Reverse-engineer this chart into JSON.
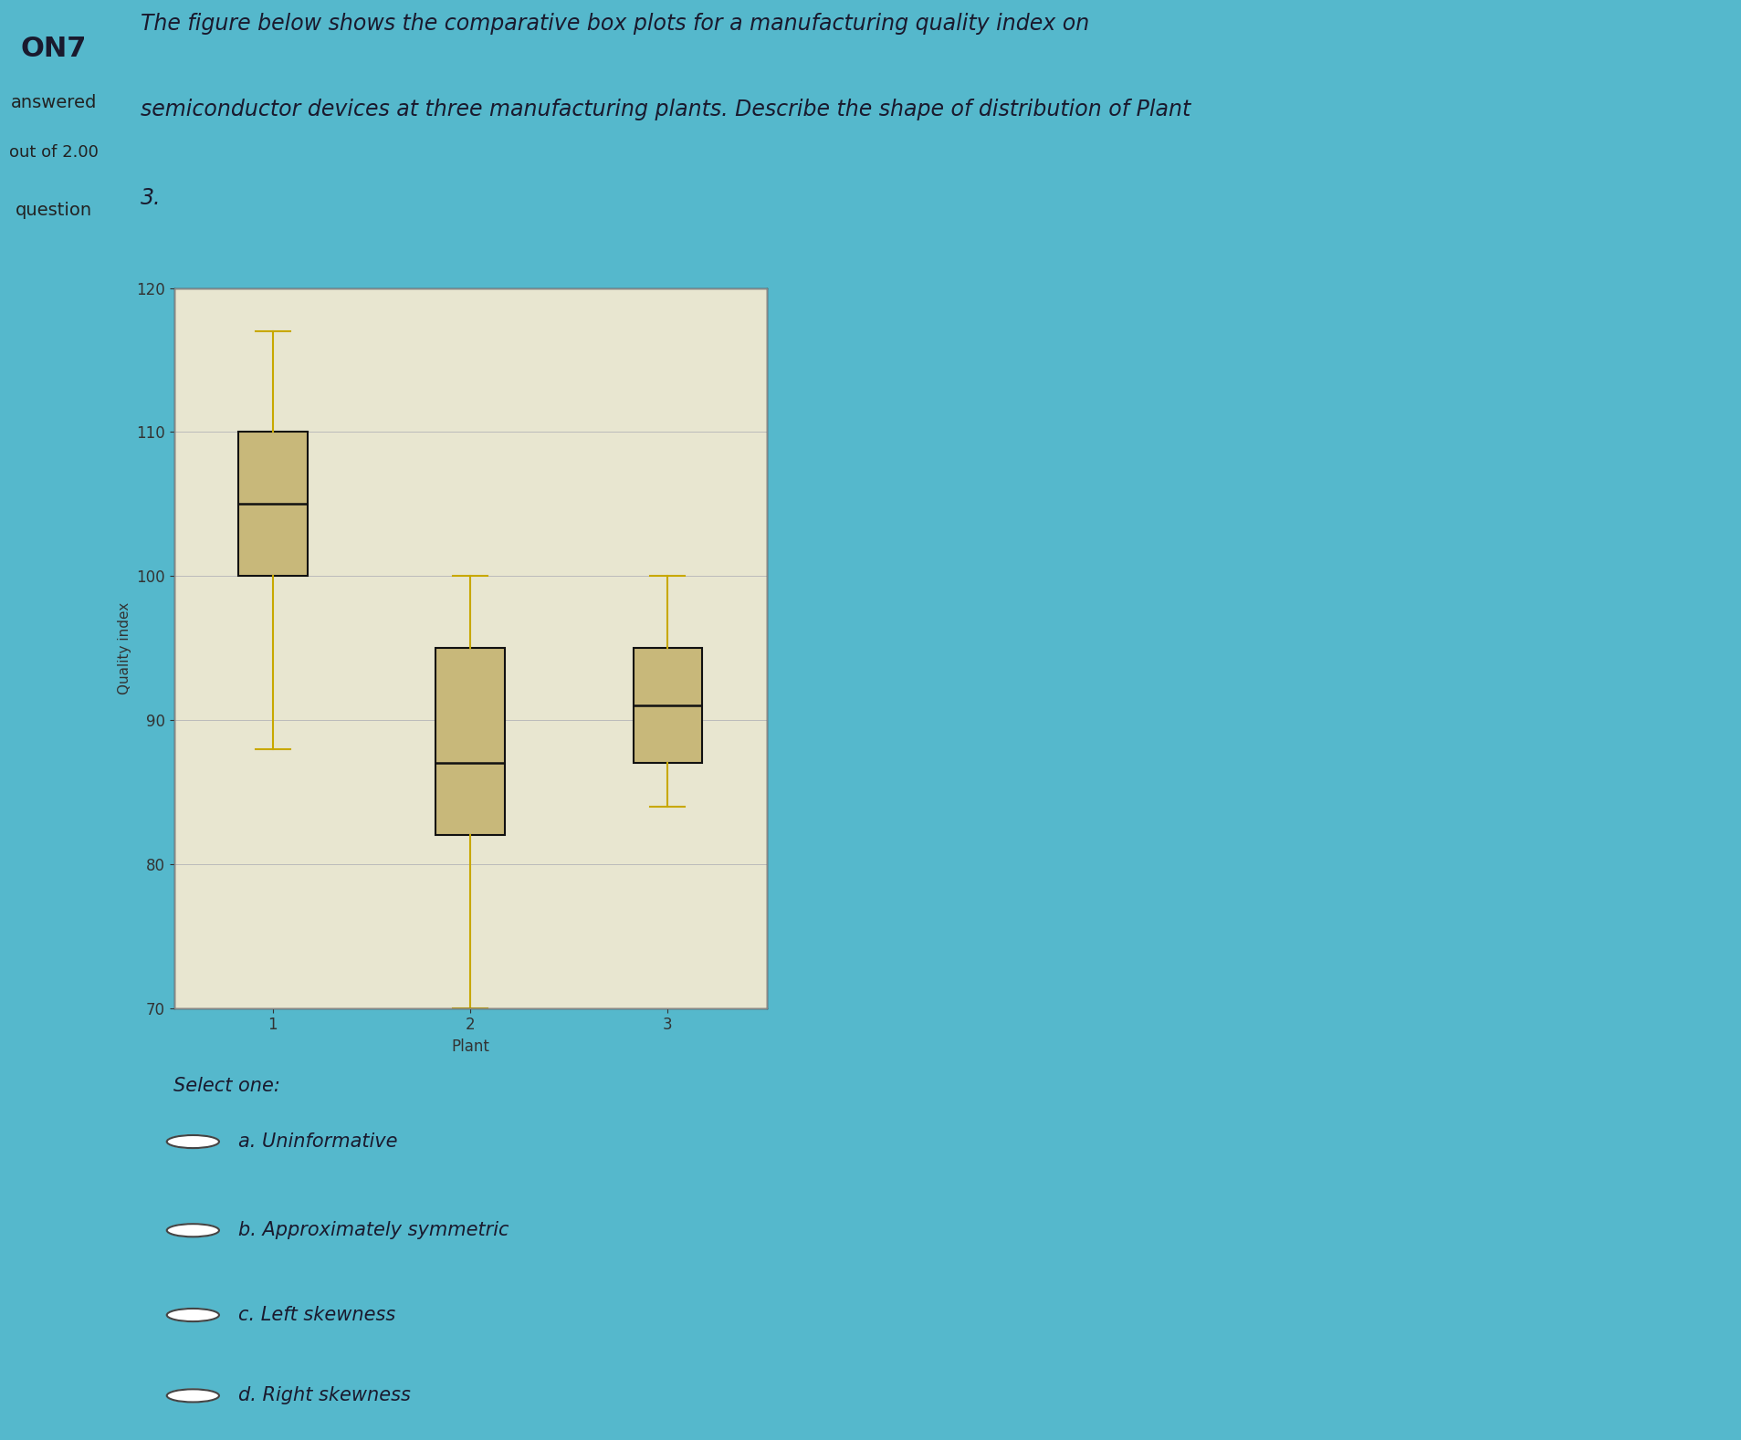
{
  "title_line1": "The figure below shows the comparative box plots for a manufacturing quality index on",
  "title_line2": "semiconductor devices at three manufacturing plants. Describe the shape of distribution of Plant",
  "title_line3": "3.",
  "xlabel": "Plant",
  "ylabel": "Quality index",
  "ylim": [
    70,
    120
  ],
  "yticks": [
    70,
    80,
    90,
    100,
    110,
    120
  ],
  "xticks": [
    1,
    2,
    3
  ],
  "plant1": {
    "whisker_low": 88,
    "q1": 100,
    "median": 105,
    "q3": 110,
    "whisker_high": 117
  },
  "plant2": {
    "whisker_low": 70,
    "q1": 82,
    "median": 87,
    "q3": 95,
    "whisker_high": 100
  },
  "plant3": {
    "whisker_low": 84,
    "q1": 87,
    "median": 91,
    "q3": 95,
    "whisker_high": 100
  },
  "box_color": "#c8b87a",
  "box_edge_color": "#111111",
  "median_color": "#111111",
  "whisker_color": "#c8a800",
  "cap_color": "#c8a800",
  "plot_bg_color": "#e8e6d0",
  "outer_bg_color": "#55b8cc",
  "box_width": 0.35,
  "sidebar_bg": "#b4b4b4",
  "title_color": "#1a1a2e",
  "axis_color": "#333333",
  "grid_color": "#bbbbbb",
  "options": [
    "a. Uninformative",
    "b. Approximately symmetric",
    "c. Left skewness",
    "d. Right skewness"
  ],
  "select_one_text": "Select one:",
  "question_label": "ON7",
  "answered_label": "answered",
  "out_of_label": "out of 2.00",
  "question_text_label": "question",
  "fig_width": 19.08,
  "fig_height": 15.78,
  "dpi": 100
}
